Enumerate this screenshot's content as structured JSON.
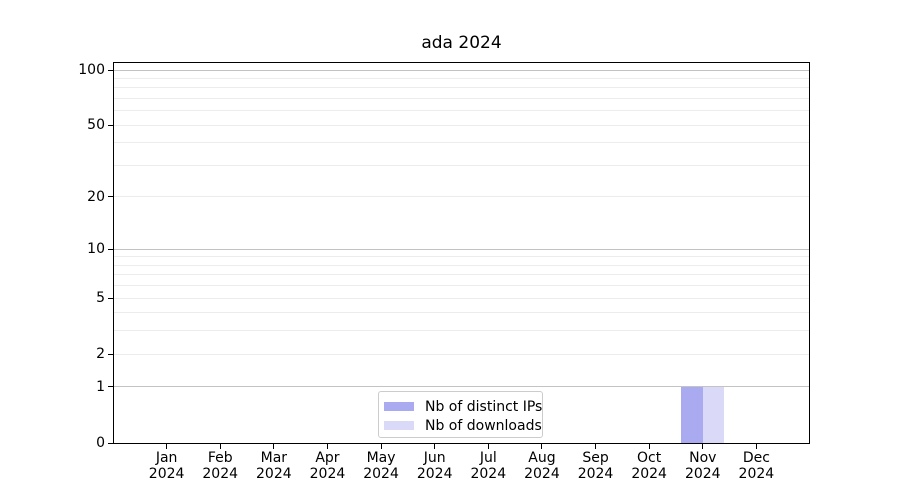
{
  "chart_data": {
    "type": "bar",
    "title": "ada 2024",
    "x_categories": [
      {
        "month": "Jan",
        "year": "2024"
      },
      {
        "month": "Feb",
        "year": "2024"
      },
      {
        "month": "Mar",
        "year": "2024"
      },
      {
        "month": "Apr",
        "year": "2024"
      },
      {
        "month": "May",
        "year": "2024"
      },
      {
        "month": "Jun",
        "year": "2024"
      },
      {
        "month": "Jul",
        "year": "2024"
      },
      {
        "month": "Aug",
        "year": "2024"
      },
      {
        "month": "Sep",
        "year": "2024"
      },
      {
        "month": "Oct",
        "year": "2024"
      },
      {
        "month": "Nov",
        "year": "2024"
      },
      {
        "month": "Dec",
        "year": "2024"
      }
    ],
    "series": [
      {
        "name": "Nb of distinct IPs",
        "color": "#aaaaf0",
        "values": [
          0,
          0,
          0,
          0,
          0,
          0,
          0,
          0,
          0,
          0,
          1,
          0
        ]
      },
      {
        "name": "Nb of downloads",
        "color": "#dadaf8",
        "values": [
          0,
          0,
          0,
          0,
          0,
          0,
          0,
          0,
          0,
          0,
          1,
          0
        ]
      }
    ],
    "y_axis": {
      "scale": "log1p",
      "ticks": [
        0,
        1,
        2,
        5,
        10,
        20,
        50,
        100
      ],
      "major_gridlines": [
        1,
        10,
        100
      ],
      "minor_gridlines": [
        2,
        3,
        4,
        5,
        6,
        7,
        8,
        9,
        20,
        30,
        40,
        50,
        60,
        70,
        80,
        90
      ],
      "max": 110
    },
    "legend_position": "bottom-center-inside",
    "colors": {
      "major_grid": "#c3c3c3",
      "minor_grid": "#ececec",
      "spine": "#000000"
    }
  }
}
